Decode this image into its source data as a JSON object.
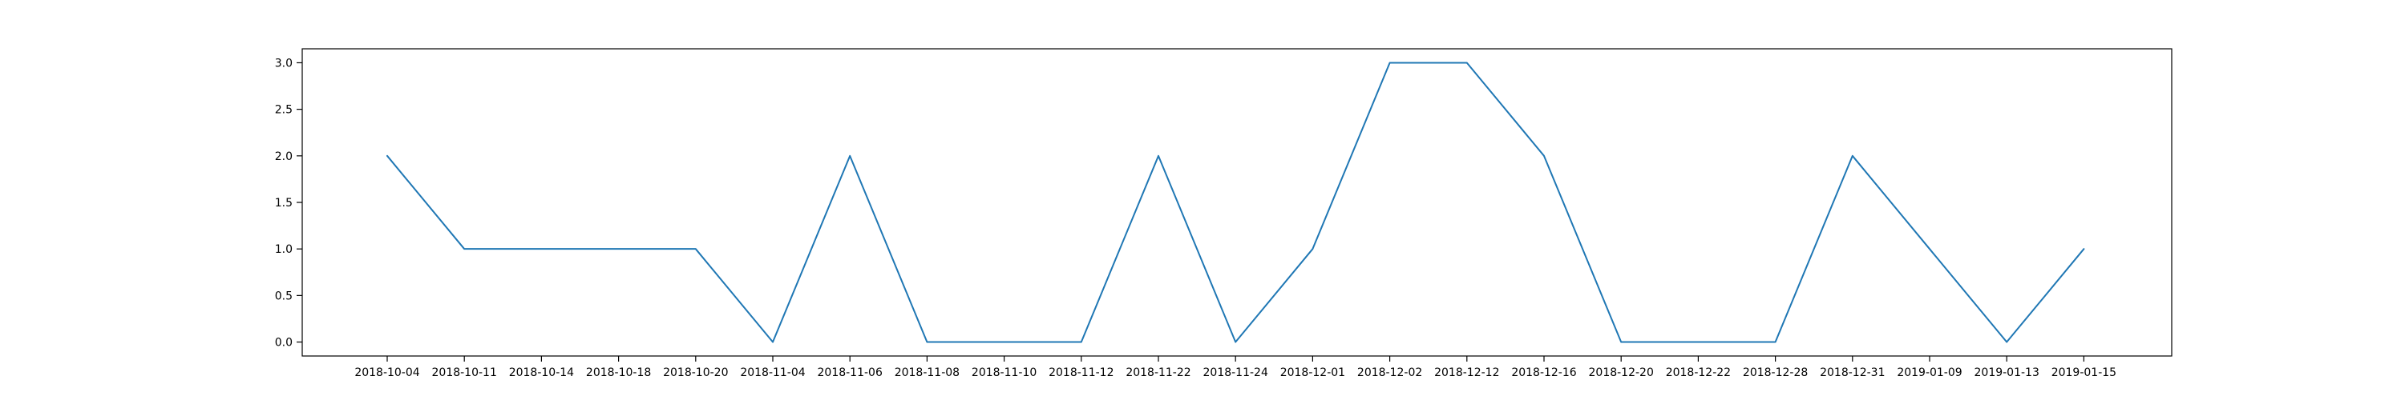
{
  "chart_data": {
    "type": "line",
    "categories": [
      "2018-10-04",
      "2018-10-11",
      "2018-10-14",
      "2018-10-18",
      "2018-10-20",
      "2018-11-04",
      "2018-11-06",
      "2018-11-08",
      "2018-11-10",
      "2018-11-12",
      "2018-11-22",
      "2018-11-24",
      "2018-12-01",
      "2018-12-02",
      "2018-12-12",
      "2018-12-16",
      "2018-12-20",
      "2018-12-22",
      "2018-12-28",
      "2018-12-31",
      "2019-01-09",
      "2019-01-13",
      "2019-01-15"
    ],
    "series": [
      {
        "values": [
          2,
          1,
          1,
          1,
          1,
          0,
          2,
          0,
          0,
          0,
          2,
          0,
          1,
          3,
          3,
          2,
          0,
          0,
          0,
          2,
          1,
          0,
          1
        ],
        "color": "#1f77b4"
      }
    ],
    "title": "",
    "xlabel": "",
    "ylabel": "",
    "ylim": [
      -0.15,
      3.15
    ],
    "yticks": [
      0.0,
      0.5,
      1.0,
      1.5,
      2.0,
      2.5,
      3.0
    ],
    "ytick_labels": [
      "0.0",
      "0.5",
      "1.0",
      "1.5",
      "2.0",
      "2.5",
      "3.0"
    ],
    "grid": false,
    "legend": "none"
  }
}
